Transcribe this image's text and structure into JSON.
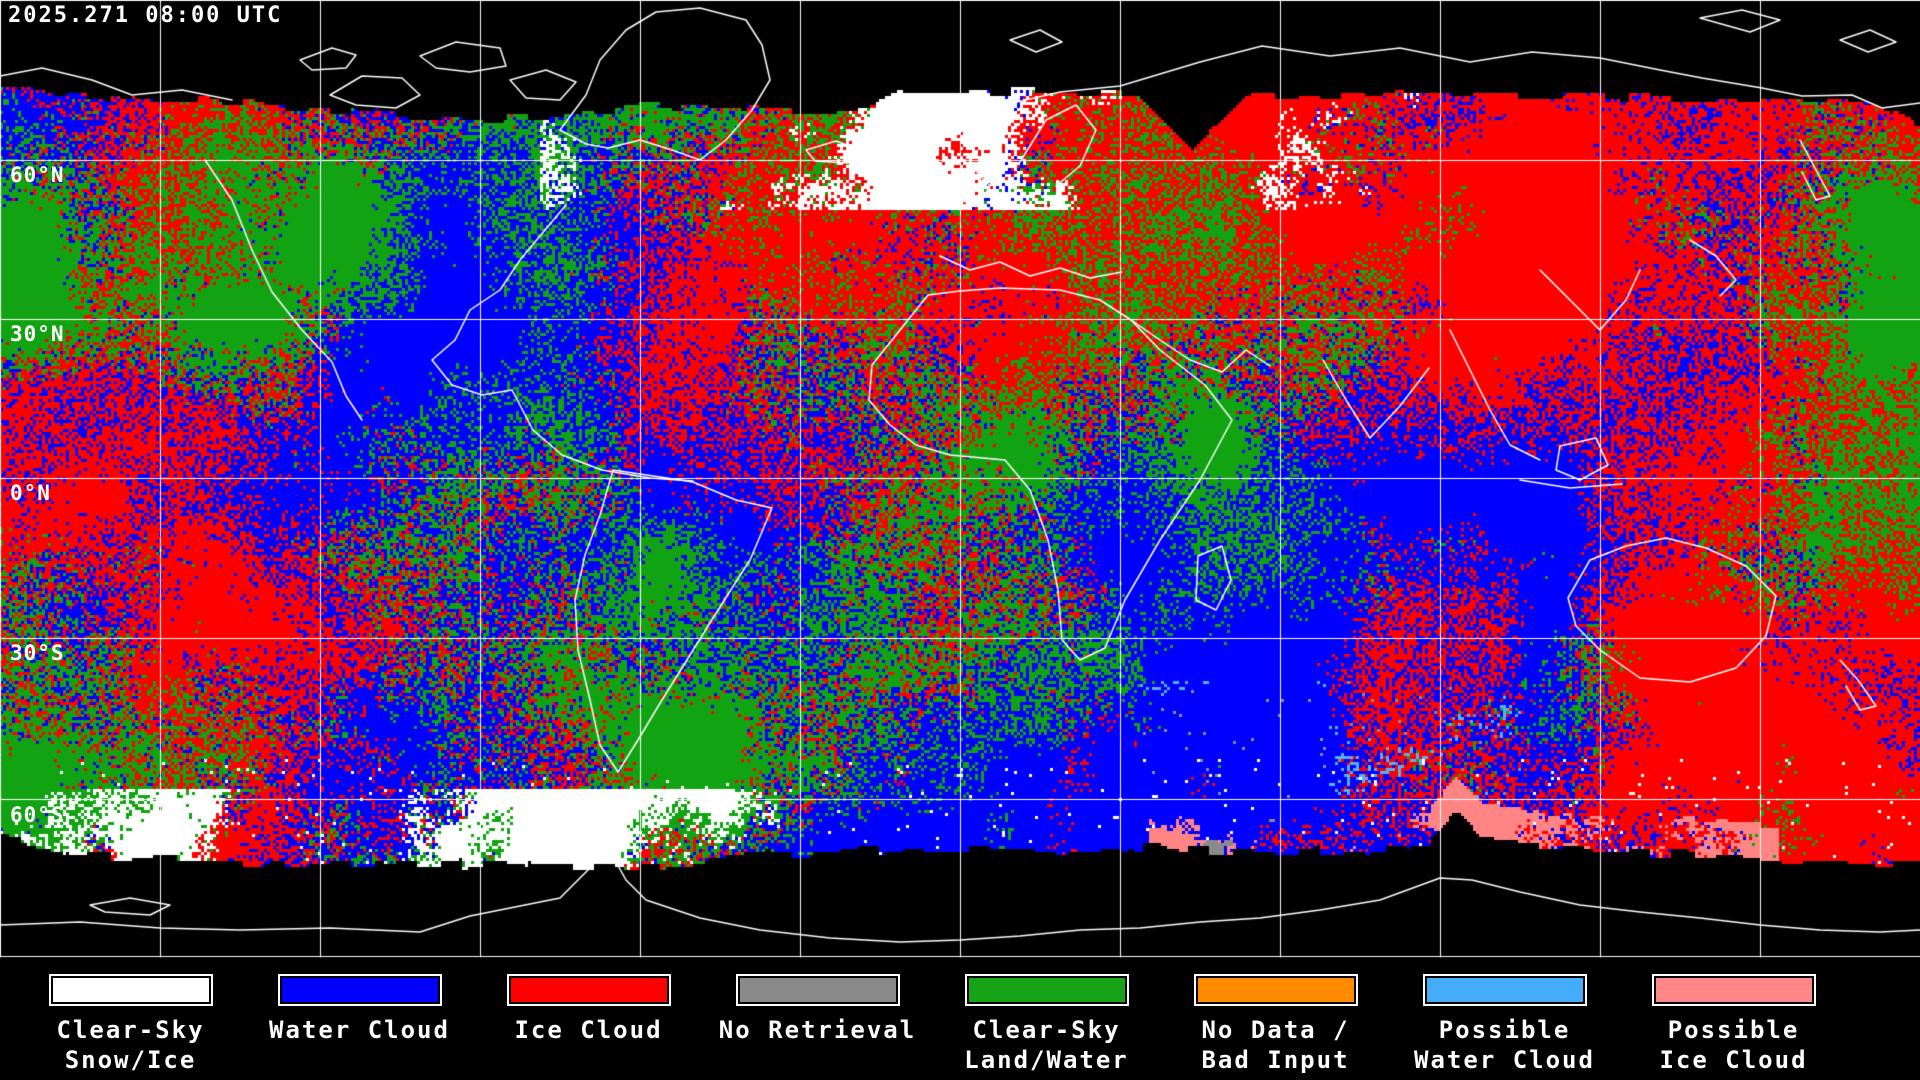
{
  "header": {
    "timestamp": "2025.271 08:00 UTC"
  },
  "map": {
    "latitude_labels": [
      "60°N",
      "30°N",
      "0°N",
      "30°S",
      "60°S"
    ],
    "colors": {
      "background": "#000000",
      "grid": "#ffffff",
      "coastline": "#ffffff",
      "snow_ice": "#ffffff",
      "water_cloud": "#0000ff",
      "ice_cloud": "#ff0000",
      "no_retrieval": "#8a8a8a",
      "clear_land": "#12a312",
      "no_data": "#ff8c00",
      "possible_water": "#52b2f2",
      "possible_ice": "#ff8585"
    }
  },
  "legend": {
    "entries": [
      {
        "name": "clear-sky-snow-ice",
        "color": "#ffffff",
        "line1": "Clear-Sky",
        "line2": "Snow/Ice"
      },
      {
        "name": "water-cloud",
        "color": "#0000ff",
        "line1": "Water Cloud",
        "line2": ""
      },
      {
        "name": "ice-cloud",
        "color": "#ff0000",
        "line1": "Ice Cloud",
        "line2": ""
      },
      {
        "name": "no-retrieval",
        "color": "#8a8a8a",
        "line1": "No Retrieval",
        "line2": ""
      },
      {
        "name": "clear-sky-land-water",
        "color": "#16a316",
        "line1": "Clear-Sky",
        "line2": "Land/Water"
      },
      {
        "name": "no-data-bad-input",
        "color": "#ff8c00",
        "line1": "No Data /",
        "line2": "Bad Input"
      },
      {
        "name": "possible-water-cloud",
        "color": "#45acf9",
        "line1": "Possible",
        "line2": "Water Cloud"
      },
      {
        "name": "possible-ice-cloud",
        "color": "#ff8787",
        "line1": "Possible",
        "line2": "Ice Cloud"
      }
    ]
  }
}
